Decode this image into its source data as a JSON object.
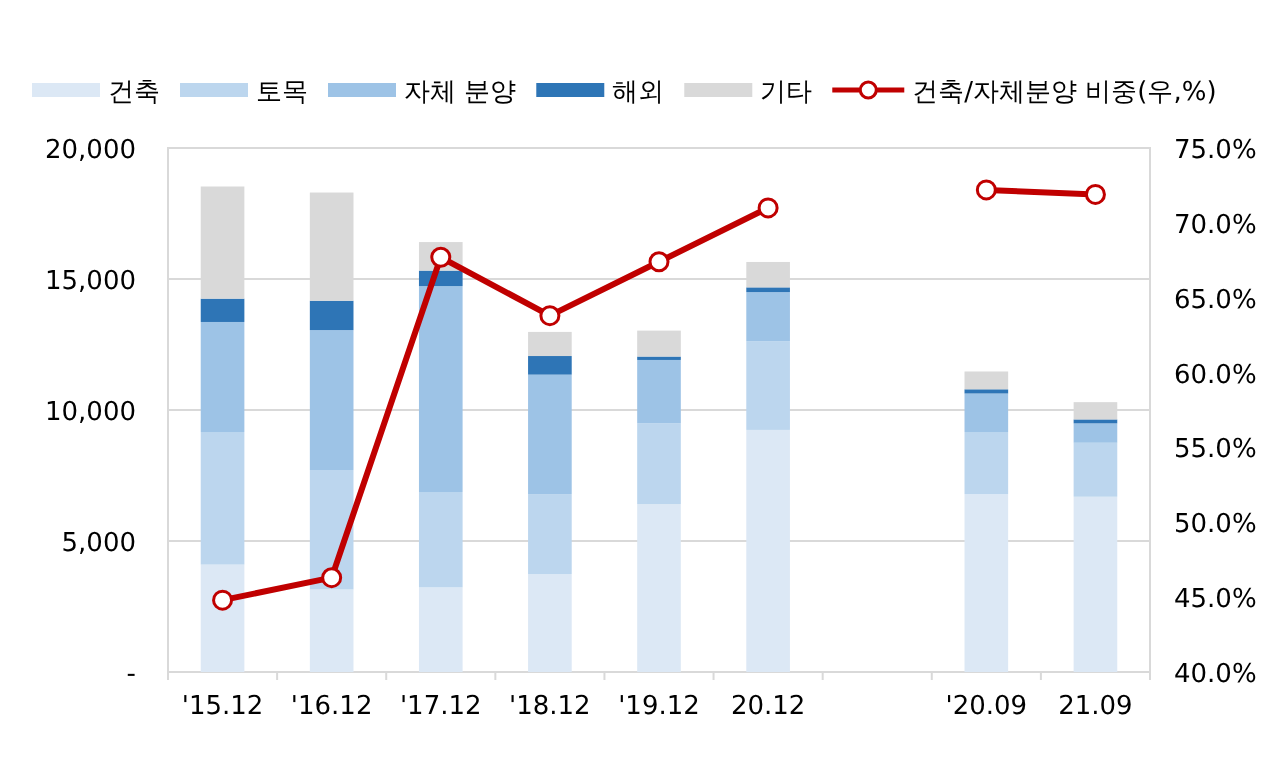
{
  "chart_data": {
    "type": "bar",
    "stacked": true,
    "legend": "top",
    "grid": "y",
    "categories": [
      "'15.12",
      "'16.12",
      "'17.12",
      "'18.12",
      "'19.12",
      "20.12",
      null,
      "'20.09",
      "21.09"
    ],
    "series": [
      {
        "name": "건축",
        "color": "#dce8f5",
        "values": [
          4100,
          3150,
          3230,
          3740,
          6410,
          9240,
          null,
          6790,
          6690
        ]
      },
      {
        "name": "토목",
        "color": "#bcd6ee",
        "values": [
          5060,
          4560,
          3640,
          3050,
          3080,
          3380,
          null,
          2370,
          2060
        ]
      },
      {
        "name": "자체 분양",
        "color": "#9dc3e6",
        "values": [
          4200,
          5340,
          7860,
          4560,
          2420,
          1880,
          null,
          1470,
          740
        ]
      },
      {
        "name": "해외",
        "color": "#2e75b6",
        "values": [
          890,
          1120,
          590,
          710,
          130,
          180,
          null,
          160,
          150
        ]
      },
      {
        "name": "기타",
        "color": "#d9d9d9",
        "values": [
          4280,
          4130,
          1090,
          920,
          990,
          970,
          null,
          680,
          660
        ]
      },
      {
        "name": "건축/자체분양 비중(우,%)",
        "type": "line",
        "axis": "y2",
        "marker": "circle",
        "line_style": "solid",
        "color": "#c00000",
        "values": [
          44.8,
          46.3,
          67.7,
          63.8,
          67.4,
          71.0,
          null,
          72.2,
          71.9
        ]
      }
    ],
    "ylim": [
      0,
      20000
    ],
    "yticks": [
      {
        "value": 0,
        "label": "-"
      },
      {
        "value": 5000,
        "label": "5,000"
      },
      {
        "value": 10000,
        "label": "10,000"
      },
      {
        "value": 15000,
        "label": "15,000"
      },
      {
        "value": 20000,
        "label": "20,000"
      }
    ],
    "y2lim": [
      40,
      75
    ],
    "y2ticks": [
      {
        "value": 40,
        "label": "40.0%"
      },
      {
        "value": 45,
        "label": "45.0%"
      },
      {
        "value": 50,
        "label": "50.0%"
      },
      {
        "value": 55,
        "label": "55.0%"
      },
      {
        "value": 60,
        "label": "60.0%"
      },
      {
        "value": 65,
        "label": "65.0%"
      },
      {
        "value": 70,
        "label": "70.0%"
      },
      {
        "value": 75,
        "label": "75.0%"
      }
    ]
  }
}
